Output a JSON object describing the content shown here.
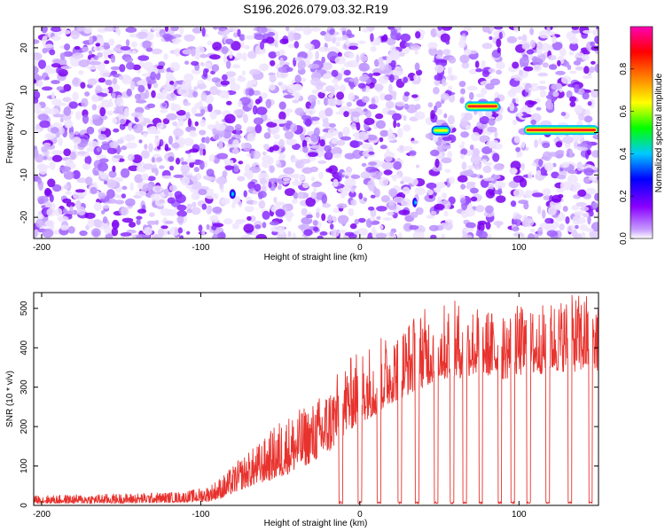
{
  "title": "S196.2026.079.03.32.R19",
  "chart_data": [
    {
      "type": "heatmap",
      "xlabel": "Height of straight line (km)",
      "ylabel": "Frequency (Hz)",
      "xlim": [
        -205,
        150
      ],
      "ylim": [
        -25,
        25
      ],
      "x_ticks": [
        -200,
        -100,
        0,
        100
      ],
      "y_ticks": [
        -20,
        -10,
        0,
        10,
        20
      ],
      "colorbar": {
        "label": "Normalized spectral amplitude",
        "range": [
          0,
          1
        ],
        "ticks": [
          0.0,
          0.2,
          0.4,
          0.6,
          0.8
        ],
        "colors": [
          "#ffffff",
          "#8a00ff",
          "#0000ff",
          "#00c8ff",
          "#00ff00",
          "#ffff00",
          "#ff8000",
          "#ff0000",
          "#ff00b4"
        ]
      },
      "notes_visible": "scattered low-amplitude purple noise; narrow bright tones near 0 Hz beyond ~40 km and near +6 Hz at ~70–90 km",
      "tones": [
        {
          "x_start": 45,
          "x_end": 57,
          "freq": 0.5,
          "amplitude": 0.55
        },
        {
          "x_start": 66,
          "x_end": 88,
          "freq": 6.2,
          "amplitude": 0.9
        },
        {
          "x_start": 103,
          "x_end": 150,
          "freq": 0.6,
          "amplitude": 0.9
        },
        {
          "x_start": 33,
          "x_end": 36,
          "freq": -16.5,
          "amplitude": 0.3
        },
        {
          "x_start": -82,
          "x_end": -78,
          "freq": -14.5,
          "amplitude": 0.25
        }
      ],
      "gaps": [
        [
          38,
          44
        ],
        [
          58,
          64
        ],
        [
          89,
          95
        ]
      ]
    },
    {
      "type": "line",
      "xlabel": "Height of straight line (km)",
      "ylabel": "SNR (10 * v/v)",
      "xlim": [
        -205,
        150
      ],
      "ylim": [
        0,
        540
      ],
      "x_ticks": [
        -200,
        -100,
        0,
        100
      ],
      "y_ticks": [
        0,
        100,
        200,
        300,
        400,
        500
      ],
      "color": "#e8322d",
      "envelope": {
        "x": [
          -205,
          -150,
          -110,
          -95,
          -85,
          -75,
          -60,
          -50,
          -40,
          -30,
          -20,
          -10,
          0,
          10,
          20,
          30,
          40,
          50,
          60,
          70,
          80,
          90,
          100,
          110,
          120,
          130,
          140,
          150
        ],
        "base": [
          5,
          5,
          8,
          10,
          20,
          40,
          60,
          70,
          90,
          110,
          130,
          180,
          210,
          230,
          260,
          280,
          300,
          320,
          320,
          330,
          330,
          320,
          330,
          330,
          340,
          340,
          340,
          340
        ],
        "peak": [
          25,
          30,
          35,
          50,
          80,
          120,
          170,
          220,
          240,
          260,
          300,
          360,
          400,
          420,
          440,
          470,
          500,
          510,
          520,
          510,
          500,
          490,
          510,
          500,
          520,
          530,
          540,
          540
        ]
      },
      "dropouts_x": [
        -12,
        0,
        12,
        25,
        36,
        48,
        58,
        66,
        76,
        88,
        96,
        106,
        118,
        132,
        145
      ]
    }
  ]
}
